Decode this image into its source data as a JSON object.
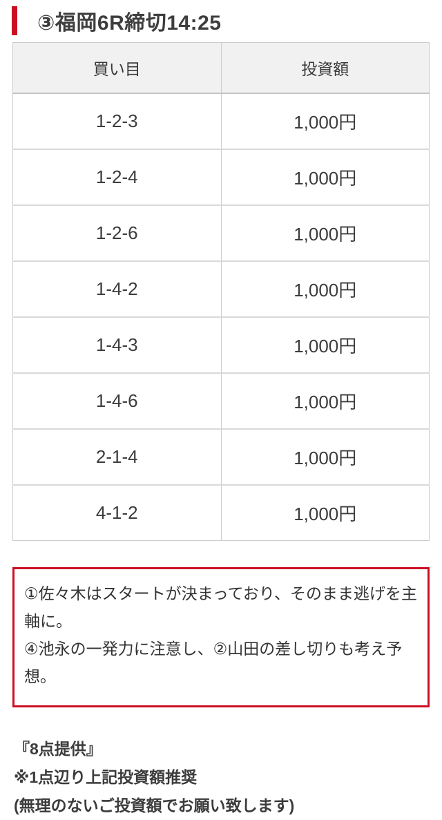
{
  "header": {
    "title": "③福岡6R締切14:25"
  },
  "table": {
    "headers": [
      "買い目",
      "投資額"
    ],
    "rows": [
      {
        "bet": "1-2-3",
        "amount": "1,000円"
      },
      {
        "bet": "1-2-4",
        "amount": "1,000円"
      },
      {
        "bet": "1-2-6",
        "amount": "1,000円"
      },
      {
        "bet": "1-4-2",
        "amount": "1,000円"
      },
      {
        "bet": "1-4-3",
        "amount": "1,000円"
      },
      {
        "bet": "1-4-6",
        "amount": "1,000円"
      },
      {
        "bet": "2-1-4",
        "amount": "1,000円"
      },
      {
        "bet": "4-1-2",
        "amount": "1,000円"
      }
    ]
  },
  "comment": {
    "lines": [
      "①佐々木はスタートが決まっており、そのまま逃げを主軸に。",
      "④池永の一発力に注意し、②山田の差し切りも考え予想。"
    ]
  },
  "footer": {
    "lines": [
      "『8点提供』",
      "※1点辺り上記投資額推奨",
      "(無理のないご投資額でお願い致します)"
    ]
  },
  "colors": {
    "accent_red": "#cc1023",
    "text": "#3c3c3c",
    "table_border": "#cccccc",
    "table_header_bg": "#f1f1f1"
  }
}
